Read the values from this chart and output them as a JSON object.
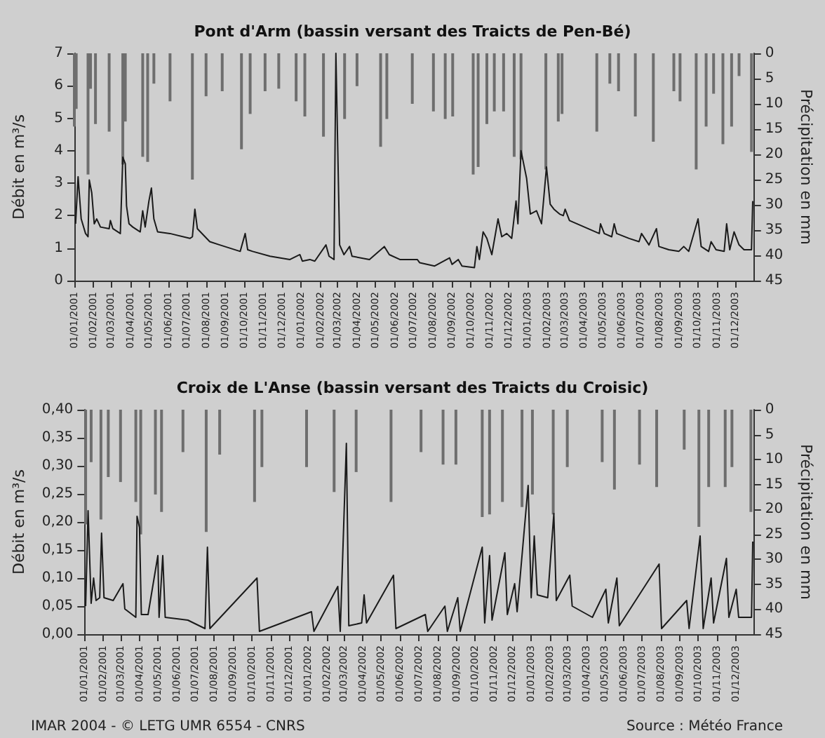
{
  "chart_data": [
    {
      "type": "line",
      "title": "Pont d'Arm (bassin versant des Traicts de Pen-Bé)",
      "ylabel": "Débit en m³/s",
      "y2label": "Précipitation en mm",
      "marker": "none",
      "xlim": [
        "2001-01-01",
        "2003-12-31"
      ],
      "xticks": [
        {
          "value": "2001-01-01",
          "label": "01/01/2001"
        },
        {
          "value": "2001-02-01",
          "label": "01/02/2001"
        },
        {
          "value": "2001-03-01",
          "label": "01/03/2001"
        },
        {
          "value": "2001-04-01",
          "label": "01/04/2001"
        },
        {
          "value": "2001-05-01",
          "label": "01/05/2001"
        },
        {
          "value": "2001-06-01",
          "label": "01/06/2001"
        },
        {
          "value": "2001-07-01",
          "label": "01/07/2001"
        },
        {
          "value": "2001-08-01",
          "label": "01/08/2001"
        },
        {
          "value": "2001-09-01",
          "label": "01/09/2001"
        },
        {
          "value": "2001-10-01",
          "label": "01/10/2001"
        },
        {
          "value": "2001-11-01",
          "label": "01/11/2001"
        },
        {
          "value": "2001-12-01",
          "label": "01/12/2001"
        },
        {
          "value": "2002-01-01",
          "label": "01/01/2002"
        },
        {
          "value": "2002-02-01",
          "label": "01/02/2002"
        },
        {
          "value": "2002-03-01",
          "label": "01/03/2002"
        },
        {
          "value": "2002-04-01",
          "label": "01/04/2002"
        },
        {
          "value": "2002-05-01",
          "label": "01/05/2002"
        },
        {
          "value": "2002-06-01",
          "label": "01/06/2002"
        },
        {
          "value": "2002-07-01",
          "label": "01/07/2002"
        },
        {
          "value": "2002-08-01",
          "label": "01/08/2002"
        },
        {
          "value": "2002-09-01",
          "label": "01/09/2002"
        },
        {
          "value": "2002-10-01",
          "label": "01/10/2002"
        },
        {
          "value": "2002-11-01",
          "label": "01/11/2002"
        },
        {
          "value": "2002-12-01",
          "label": "01/12/2002"
        },
        {
          "value": "2003-01-01",
          "label": "01/01/2003"
        },
        {
          "value": "2003-02-01",
          "label": "01/02/2003"
        },
        {
          "value": "2003-03-01",
          "label": "01/03/2003"
        },
        {
          "value": "2003-04-01",
          "label": "01/04/2003"
        },
        {
          "value": "2003-05-01",
          "label": "01/05/2003"
        },
        {
          "value": "2003-06-01",
          "label": "01/06/2003"
        },
        {
          "value": "2003-07-01",
          "label": "01/07/2003"
        },
        {
          "value": "2003-08-01",
          "label": "01/08/2003"
        },
        {
          "value": "2003-09-01",
          "label": "01/09/2003"
        },
        {
          "value": "2003-10-01",
          "label": "01/10/2003"
        },
        {
          "value": "2003-11-01",
          "label": "01/11/2003"
        },
        {
          "value": "2003-12-01",
          "label": "01/12/2003"
        }
      ],
      "ylim": [
        0,
        7
      ],
      "yticks": [
        0,
        1,
        2,
        3,
        4,
        5,
        6,
        7
      ],
      "y2lim": [
        45,
        0
      ],
      "y2ticks": [
        0,
        5,
        10,
        15,
        20,
        25,
        30,
        35,
        40,
        45
      ],
      "series": [
        {
          "type": "bar",
          "axis": "y2",
          "color": "#6e6e6e",
          "x": [
            "2001-01-01",
            "2001-01-04",
            "2001-01-23",
            "2001-01-27",
            "2001-02-04",
            "2001-02-26",
            "2001-03-20",
            "2001-03-24",
            "2001-04-21",
            "2001-04-29",
            "2001-05-09",
            "2001-06-04",
            "2001-07-10",
            "2001-08-01",
            "2001-08-27",
            "2001-09-27",
            "2001-10-11",
            "2001-11-04",
            "2001-11-26",
            "2001-12-24",
            "2002-01-07",
            "2002-02-06",
            "2002-03-12",
            "2002-04-01",
            "2002-05-09",
            "2002-05-19",
            "2002-06-29",
            "2002-08-02",
            "2002-08-21",
            "2002-09-02",
            "2002-10-05",
            "2002-10-13",
            "2002-10-27",
            "2002-11-08",
            "2002-11-23",
            "2002-12-10",
            "2002-12-21",
            "2003-01-30",
            "2003-02-19",
            "2003-02-25",
            "2003-04-22",
            "2003-05-13",
            "2003-05-27",
            "2003-06-23",
            "2003-07-22",
            "2003-08-24",
            "2003-09-03",
            "2003-09-29",
            "2003-10-15",
            "2003-10-27",
            "2003-11-11",
            "2003-11-25",
            "2003-12-07",
            "2003-12-27"
          ],
          "values": [
            14.5,
            11,
            24,
            7,
            14,
            15.5,
            22,
            13.5,
            20.5,
            21.5,
            6,
            9.5,
            25,
            8.5,
            7.5,
            19,
            12,
            7.5,
            7,
            9.5,
            12.5,
            16.5,
            13,
            6.5,
            18.5,
            13,
            10,
            11.5,
            13,
            12.5,
            24,
            22.5,
            14,
            11.5,
            11.5,
            20.5,
            21,
            23,
            13.5,
            12,
            15.5,
            6,
            7.5,
            12.5,
            17.5,
            7.5,
            9.5,
            23,
            14.5,
            8,
            18,
            14.5,
            4.5,
            19.5
          ]
        },
        {
          "color": "#1a1a1a",
          "x": [
            "2001-01-03",
            "2001-01-07",
            "2001-01-12",
            "2001-01-19",
            "2001-01-23",
            "2001-01-25",
            "2001-01-29",
            "2001-02-02",
            "2001-02-06",
            "2001-02-12",
            "2001-02-26",
            "2001-02-28",
            "2001-03-04",
            "2001-03-16",
            "2001-03-20",
            "2001-03-24",
            "2001-03-26",
            "2001-03-30",
            "2001-04-05",
            "2001-04-17",
            "2001-04-21",
            "2001-04-25",
            "2001-05-01",
            "2001-05-05",
            "2001-05-09",
            "2001-05-15",
            "2001-06-04",
            "2001-07-06",
            "2001-07-10",
            "2001-07-14",
            "2001-07-18",
            "2001-08-07",
            "2001-08-23",
            "2001-09-25",
            "2001-10-03",
            "2001-10-07",
            "2001-10-15",
            "2001-11-12",
            "2001-12-14",
            "2001-12-30",
            "2002-01-03",
            "2002-01-15",
            "2002-01-23",
            "2002-02-10",
            "2002-02-15",
            "2002-02-23",
            "2002-02-26",
            "2002-03-04",
            "2002-03-11",
            "2002-03-20",
            "2002-03-24",
            "2002-04-21",
            "2002-05-15",
            "2002-05-23",
            "2002-06-09",
            "2002-07-07",
            "2002-07-11",
            "2002-08-04",
            "2002-08-28",
            "2002-09-01",
            "2002-09-11",
            "2002-09-17",
            "2002-10-07",
            "2002-10-11",
            "2002-10-15",
            "2002-10-21",
            "2002-10-27",
            "2002-11-04",
            "2002-11-14",
            "2002-11-20",
            "2002-11-28",
            "2002-12-06",
            "2002-12-13",
            "2002-12-16",
            "2002-12-21",
            "2002-12-30",
            "2003-01-05",
            "2003-01-15",
            "2003-01-23",
            "2003-01-31",
            "2003-02-06",
            "2003-02-12",
            "2003-02-21",
            "2003-02-27",
            "2003-03-02",
            "2003-03-09",
            "2003-04-26",
            "2003-04-28",
            "2003-05-04",
            "2003-05-16",
            "2003-05-20",
            "2003-05-24",
            "2003-06-13",
            "2003-06-29",
            "2003-07-03",
            "2003-07-15",
            "2003-07-27",
            "2003-07-31",
            "2003-08-16",
            "2003-09-01",
            "2003-09-09",
            "2003-09-17",
            "2003-10-02",
            "2003-10-07",
            "2003-10-19",
            "2003-10-23",
            "2003-10-31",
            "2003-11-13",
            "2003-11-17",
            "2003-11-22",
            "2003-11-29",
            "2003-12-07",
            "2003-12-15",
            "2003-12-27",
            "2003-12-29"
          ],
          "values": [
            1.75,
            3.2,
            1.9,
            1.45,
            1.35,
            3.1,
            2.7,
            1.75,
            1.9,
            1.65,
            1.6,
            1.85,
            1.6,
            1.45,
            3.8,
            3.6,
            2.3,
            1.75,
            1.65,
            1.5,
            2.15,
            1.65,
            2.45,
            2.85,
            1.9,
            1.5,
            1.45,
            1.3,
            1.35,
            2.2,
            1.6,
            1.2,
            1.1,
            0.9,
            1.45,
            0.95,
            0.9,
            0.75,
            0.65,
            0.8,
            0.6,
            0.65,
            0.6,
            1.1,
            0.75,
            0.65,
            7,
            1.1,
            0.8,
            1.05,
            0.75,
            0.65,
            1.05,
            0.8,
            0.65,
            0.65,
            0.55,
            0.45,
            0.7,
            0.5,
            0.65,
            0.45,
            0.4,
            1.05,
            0.65,
            1.5,
            1.3,
            0.8,
            1.9,
            1.35,
            1.45,
            1.3,
            2.45,
            1.75,
            4,
            3.15,
            2.05,
            2.15,
            1.75,
            3.5,
            2.35,
            2.2,
            2.05,
            2,
            2.2,
            1.85,
            1.45,
            1.75,
            1.45,
            1.35,
            1.75,
            1.45,
            1.3,
            1.2,
            1.45,
            1.1,
            1.6,
            1.05,
            0.95,
            0.9,
            1.05,
            0.9,
            1.9,
            1.05,
            0.9,
            1.2,
            0.95,
            0.9,
            1.75,
            0.95,
            1.5,
            1.1,
            0.95,
            0.95,
            2.45
          ]
        }
      ]
    },
    {
      "type": "line",
      "title": "Croix de L'Anse (bassin versant des Traicts du Croisic)",
      "ylabel": "Débit en m³/s",
      "y2label": "Précipitation en mm",
      "marker": "none",
      "annotations": [
        "IMAR 2004 - © LETG UMR 6554 - CNRS",
        "Source : Météo France"
      ],
      "xlim": [
        "2001-01-01",
        "2003-12-31"
      ],
      "xticks": [
        {
          "value": "2001-01-01",
          "label": "01/01/2001"
        },
        {
          "value": "2001-02-01",
          "label": "01/02/2001"
        },
        {
          "value": "2001-03-01",
          "label": "01/03/2001"
        },
        {
          "value": "2001-04-01",
          "label": "01/04/2001"
        },
        {
          "value": "2001-05-01",
          "label": "01/05/2001"
        },
        {
          "value": "2001-06-01",
          "label": "01/06/2001"
        },
        {
          "value": "2001-07-01",
          "label": "01/07/2001"
        },
        {
          "value": "2001-08-01",
          "label": "01/08/2001"
        },
        {
          "value": "2001-09-01",
          "label": "01/09/2001"
        },
        {
          "value": "2001-10-01",
          "label": "01/10/2001"
        },
        {
          "value": "2001-11-01",
          "label": "01/11/2001"
        },
        {
          "value": "2001-12-01",
          "label": "01/12/2001"
        },
        {
          "value": "2002-01-01",
          "label": "01/01/2002"
        },
        {
          "value": "2002-02-01",
          "label": "01/02/2002"
        },
        {
          "value": "2002-03-01",
          "label": "01/03/2002"
        },
        {
          "value": "2002-04-01",
          "label": "01/04/2002"
        },
        {
          "value": "2002-05-01",
          "label": "01/05/2002"
        },
        {
          "value": "2002-06-01",
          "label": "01/06/2002"
        },
        {
          "value": "2002-07-01",
          "label": "01/07/2002"
        },
        {
          "value": "2002-08-01",
          "label": "01/08/2002"
        },
        {
          "value": "2002-09-01",
          "label": "01/09/2002"
        },
        {
          "value": "2002-10-01",
          "label": "01/10/2002"
        },
        {
          "value": "2002-11-01",
          "label": "01/11/2002"
        },
        {
          "value": "2002-12-01",
          "label": "01/12/2002"
        },
        {
          "value": "2003-01-01",
          "label": "01/01/2003"
        },
        {
          "value": "2003-02-01",
          "label": "01/02/2003"
        },
        {
          "value": "2003-03-01",
          "label": "01/03/2003"
        },
        {
          "value": "2003-04-01",
          "label": "01/04/2003"
        },
        {
          "value": "2003-05-01",
          "label": "01/05/2003"
        },
        {
          "value": "2003-06-01",
          "label": "01/06/2003"
        },
        {
          "value": "2003-07-01",
          "label": "01/07/2003"
        },
        {
          "value": "2003-08-01",
          "label": "01/08/2003"
        },
        {
          "value": "2003-09-01",
          "label": "01/09/2003"
        },
        {
          "value": "2003-10-01",
          "label": "01/10/2003"
        },
        {
          "value": "2003-11-01",
          "label": "01/11/2003"
        },
        {
          "value": "2003-12-01",
          "label": "01/12/2003"
        }
      ],
      "ylim": [
        0,
        0.4
      ],
      "yticks": [
        {
          "value": 0,
          "label": "0,00"
        },
        {
          "value": 0.05,
          "label": "0,05"
        },
        {
          "value": 0.1,
          "label": "0,10"
        },
        {
          "value": 0.15,
          "label": "0,15"
        },
        {
          "value": 0.2,
          "label": "0,20"
        },
        {
          "value": 0.25,
          "label": "0,25"
        },
        {
          "value": 0.3,
          "label": "0,30"
        },
        {
          "value": 0.35,
          "label": "0,35"
        },
        {
          "value": 0.4,
          "label": "0,40"
        }
      ],
      "y2lim": [
        45,
        0
      ],
      "y2ticks": [
        0,
        5,
        10,
        15,
        20,
        25,
        30,
        35,
        40,
        45
      ],
      "series": [
        {
          "type": "bar",
          "axis": "y2",
          "color": "#6e6e6e",
          "x": [
            "2001-01-03",
            "2001-01-12",
            "2001-01-28",
            "2001-02-09",
            "2001-03-01",
            "2001-03-26",
            "2001-04-03",
            "2001-04-27",
            "2001-05-07",
            "2001-06-11",
            "2001-07-19",
            "2001-08-10",
            "2001-10-06",
            "2001-10-18",
            "2001-12-30",
            "2002-02-13",
            "2002-03-21",
            "2002-05-17",
            "2002-07-05",
            "2002-08-10",
            "2002-08-31",
            "2002-10-13",
            "2002-10-25",
            "2002-11-15",
            "2002-12-17",
            "2003-01-03",
            "2003-02-06",
            "2003-03-01",
            "2003-04-27",
            "2003-05-17",
            "2003-06-27",
            "2003-07-25",
            "2003-09-08",
            "2003-10-02",
            "2003-10-18",
            "2003-11-14",
            "2003-11-25",
            "2003-12-26"
          ],
          "values": [
            23,
            10.5,
            22,
            13.5,
            14.5,
            18.5,
            25,
            17,
            20.5,
            8.5,
            24.5,
            9,
            18.5,
            11.5,
            11.5,
            16.5,
            12.5,
            18.5,
            8.5,
            11,
            11,
            21.5,
            21,
            18.5,
            19.5,
            17,
            21,
            11.5,
            10.5,
            16,
            11,
            15.5,
            8,
            23.5,
            15.5,
            15.5,
            11.5,
            20.5
          ]
        },
        {
          "color": "#1a1a1a",
          "x": [
            "2001-01-03",
            "2001-01-07",
            "2001-01-12",
            "2001-01-16",
            "2001-01-20",
            "2001-01-26",
            "2001-01-29",
            "2001-02-02",
            "2001-02-17",
            "2001-03-05",
            "2001-03-08",
            "2001-03-26",
            "2001-03-28",
            "2001-04-01",
            "2001-04-04",
            "2001-04-15",
            "2001-05-01",
            "2001-05-03",
            "2001-05-09",
            "2001-05-13",
            "2001-06-19",
            "2001-07-17",
            "2001-07-21",
            "2001-07-25",
            "2001-10-10",
            "2001-10-14",
            "2002-01-07",
            "2002-01-11",
            "2002-02-19",
            "2002-02-23",
            "2002-03-05",
            "2002-03-09",
            "2002-03-30",
            "2002-04-03",
            "2002-04-07",
            "2002-05-21",
            "2002-05-25",
            "2002-07-12",
            "2002-07-16",
            "2002-08-13",
            "2002-08-17",
            "2002-09-03",
            "2002-09-07",
            "2002-10-13",
            "2002-10-17",
            "2002-10-25",
            "2002-10-29",
            "2002-11-19",
            "2002-11-23",
            "2002-12-05",
            "2002-12-09",
            "2002-12-27",
            "2003-01-01",
            "2003-01-06",
            "2003-01-11",
            "2003-01-28",
            "2003-02-07",
            "2003-02-11",
            "2003-03-05",
            "2003-03-09",
            "2003-04-11",
            "2003-05-03",
            "2003-05-07",
            "2003-05-21",
            "2003-05-25",
            "2003-07-29",
            "2003-08-02",
            "2003-09-12",
            "2003-09-16",
            "2003-10-04",
            "2003-10-09",
            "2003-10-22",
            "2003-10-26",
            "2003-11-16",
            "2003-11-20",
            "2003-12-02",
            "2003-12-06",
            "2003-12-27",
            "2003-12-29"
          ],
          "values": [
            0.05,
            0.22,
            0.055,
            0.1,
            0.06,
            0.065,
            0.18,
            0.065,
            0.06,
            0.09,
            0.045,
            0.03,
            0.21,
            0.19,
            0.035,
            0.035,
            0.14,
            0.03,
            0.14,
            0.03,
            0.025,
            0.01,
            0.155,
            0.01,
            0.1,
            0.005,
            0.04,
            0.005,
            0.085,
            0.005,
            0.34,
            0.015,
            0.02,
            0.07,
            0.02,
            0.105,
            0.01,
            0.035,
            0.005,
            0.05,
            0.005,
            0.065,
            0.005,
            0.155,
            0.02,
            0.14,
            0.025,
            0.145,
            0.035,
            0.09,
            0.04,
            0.265,
            0.065,
            0.175,
            0.07,
            0.065,
            0.215,
            0.06,
            0.105,
            0.05,
            0.03,
            0.08,
            0.02,
            0.1,
            0.015,
            0.125,
            0.01,
            0.06,
            0.01,
            0.175,
            0.01,
            0.1,
            0.02,
            0.135,
            0.03,
            0.08,
            0.03,
            0.03,
            0.165
          ]
        }
      ]
    }
  ]
}
